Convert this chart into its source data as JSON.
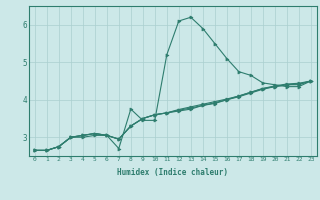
{
  "xlabel": "Humidex (Indice chaleur)",
  "ylabel": "",
  "bg_color": "#cce8e8",
  "line_color": "#2e7d6e",
  "grid_color": "#aacfcf",
  "xlim": [
    -0.5,
    23.5
  ],
  "ylim": [
    2.5,
    6.5
  ],
  "xticks": [
    0,
    1,
    2,
    3,
    4,
    5,
    6,
    7,
    8,
    9,
    10,
    11,
    12,
    13,
    14,
    15,
    16,
    17,
    18,
    19,
    20,
    21,
    22,
    23
  ],
  "yticks": [
    3,
    4,
    5,
    6
  ],
  "series": [
    [
      2.65,
      2.65,
      2.75,
      3.0,
      3.0,
      3.05,
      3.05,
      2.7,
      3.75,
      3.45,
      3.45,
      5.2,
      6.1,
      6.2,
      5.9,
      5.5,
      5.1,
      4.75,
      4.65,
      4.45,
      4.4,
      4.35,
      4.35,
      4.5
    ],
    [
      2.65,
      2.65,
      2.75,
      3.0,
      3.05,
      3.1,
      3.05,
      2.95,
      3.3,
      3.5,
      3.6,
      3.65,
      3.7,
      3.75,
      3.85,
      3.9,
      4.0,
      4.1,
      4.2,
      4.3,
      4.35,
      4.4,
      4.4,
      4.5
    ],
    [
      2.65,
      2.65,
      2.75,
      3.0,
      3.05,
      3.1,
      3.05,
      2.95,
      3.3,
      3.5,
      3.6,
      3.65,
      3.72,
      3.78,
      3.85,
      3.92,
      4.0,
      4.08,
      4.18,
      4.28,
      4.35,
      4.4,
      4.42,
      4.5
    ],
    [
      2.65,
      2.65,
      2.75,
      3.0,
      3.05,
      3.1,
      3.05,
      2.95,
      3.3,
      3.5,
      3.6,
      3.65,
      3.74,
      3.81,
      3.88,
      3.95,
      4.02,
      4.1,
      4.2,
      4.3,
      4.37,
      4.42,
      4.44,
      4.5
    ]
  ]
}
